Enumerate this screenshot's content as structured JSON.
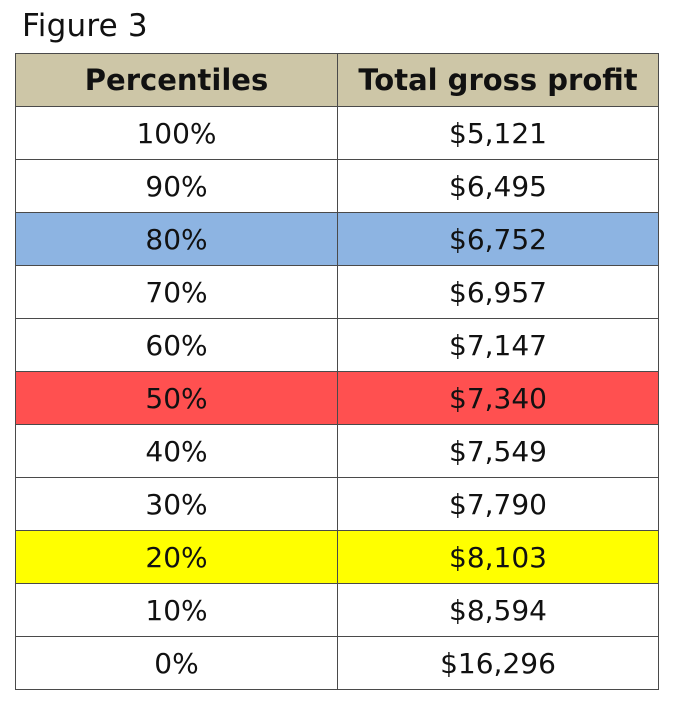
{
  "figure_title": "Figure 3",
  "chart_data": {
    "type": "table",
    "title": "Figure 3",
    "columns": [
      "Percentiles",
      "Total gross profit"
    ],
    "rows": [
      {
        "percentile": "100%",
        "profit": "$5,121",
        "highlight": null
      },
      {
        "percentile": "90%",
        "profit": "$6,495",
        "highlight": null
      },
      {
        "percentile": "80%",
        "profit": "$6,752",
        "highlight": "#8db4e2"
      },
      {
        "percentile": "70%",
        "profit": "$6,957",
        "highlight": null
      },
      {
        "percentile": "60%",
        "profit": "$7,147",
        "highlight": null
      },
      {
        "percentile": "50%",
        "profit": "$7,340",
        "highlight": "#ff5050"
      },
      {
        "percentile": "40%",
        "profit": "$7,549",
        "highlight": null
      },
      {
        "percentile": "30%",
        "profit": "$7,790",
        "highlight": null
      },
      {
        "percentile": "20%",
        "profit": "$8,103",
        "highlight": "#ffff00"
      },
      {
        "percentile": "10%",
        "profit": "$8,594",
        "highlight": null
      },
      {
        "percentile": "0%",
        "profit": "$16,296",
        "highlight": null
      }
    ]
  },
  "colors": {
    "header_bg": "#cdc6a7",
    "row_bg": "#ffffff",
    "border": "#4a4a4a"
  }
}
